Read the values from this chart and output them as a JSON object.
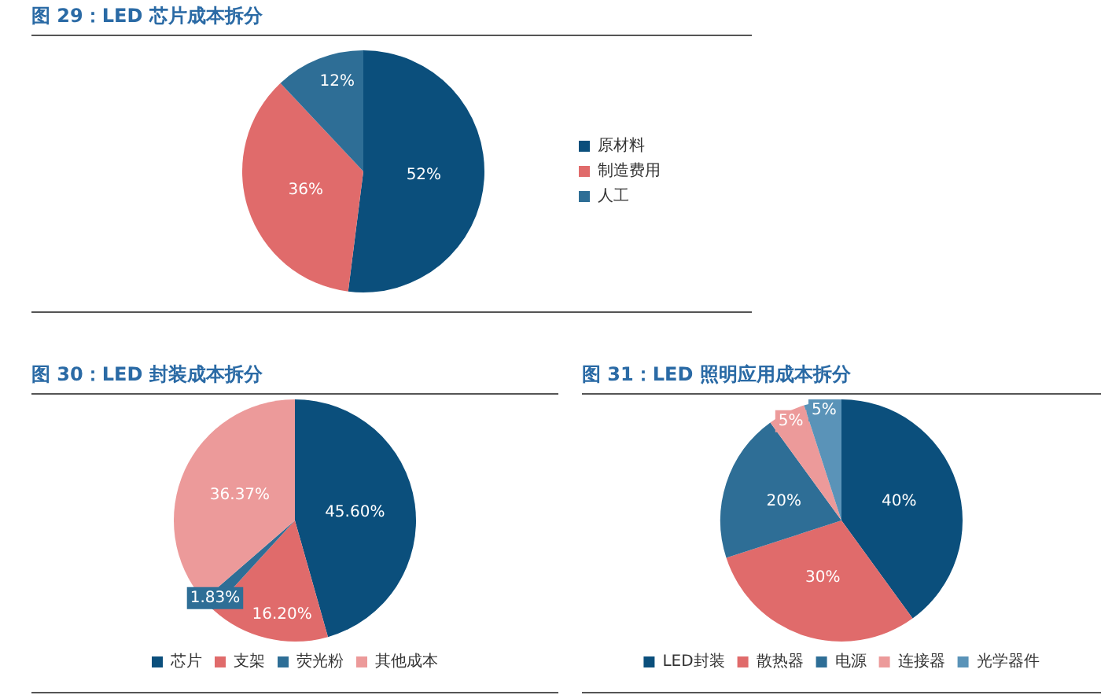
{
  "chart_data": [
    {
      "type": "pie",
      "title": "图 29：LED 芯片成本拆分",
      "categories": [
        "原材料",
        "制造费用",
        "人工"
      ],
      "values": [
        52,
        36,
        12
      ],
      "colors": [
        "#0b4f7c",
        "#e06b6b",
        "#2e6e96"
      ],
      "value_labels": [
        "52%",
        "36%",
        "12%"
      ],
      "legend": "right"
    },
    {
      "type": "pie",
      "title": "图 30：LED 封装成本拆分",
      "categories": [
        "芯片",
        "支架",
        "荧光粉",
        "其他成本"
      ],
      "values": [
        45.6,
        16.2,
        1.83,
        36.37
      ],
      "colors": [
        "#0b4f7c",
        "#e06b6b",
        "#2e6e96",
        "#ec9a9a"
      ],
      "value_labels": [
        "45.60%",
        "16.20%",
        "1.83%",
        "36.37%"
      ],
      "legend": "bottom"
    },
    {
      "type": "pie",
      "title": "图 31：LED 照明应用成本拆分",
      "categories": [
        "LED封装",
        "散热器",
        "电源",
        "连接器",
        "光学器件"
      ],
      "values": [
        40,
        30,
        20,
        5,
        5
      ],
      "colors": [
        "#0b4f7c",
        "#e06b6b",
        "#2e6e96",
        "#ec9a9a",
        "#5a93b8"
      ],
      "value_labels": [
        "40%",
        "30%",
        "20%",
        "5%",
        "5%"
      ],
      "legend": "bottom"
    }
  ]
}
